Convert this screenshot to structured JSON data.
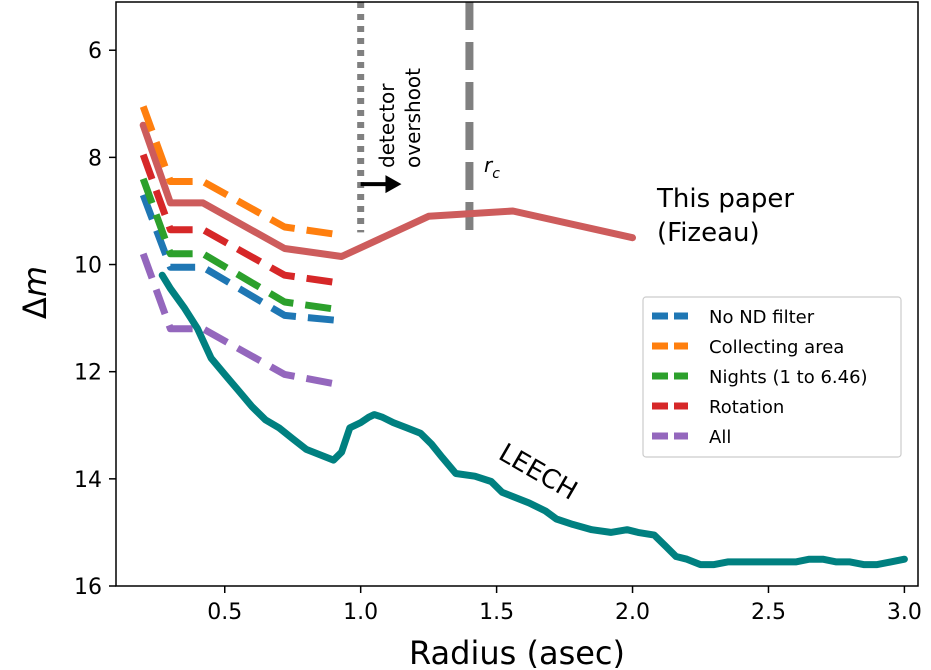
{
  "chart_data": {
    "type": "line",
    "title": "",
    "xlabel": "Radius (asec)",
    "ylabel_symbol": "Δ",
    "ylabel_var": "m",
    "xlim": [
      0.1,
      3.05
    ],
    "ylim": [
      16.0,
      5.1
    ],
    "y_inverted": true,
    "xticks": [
      0.5,
      1.0,
      1.5,
      2.0,
      2.5,
      3.0
    ],
    "xtick_labels": [
      "0.5",
      "1.0",
      "1.5",
      "2.0",
      "2.5",
      "3.0"
    ],
    "yticks": [
      6,
      8,
      10,
      12,
      14,
      16
    ],
    "ytick_labels": [
      "6",
      "8",
      "10",
      "12",
      "14",
      "16"
    ],
    "grid": false,
    "legend_position": "center-right",
    "series": [
      {
        "name": "This paper (Fizeau)",
        "color": "#cd5c5c",
        "style": "solid",
        "x": [
          0.2,
          0.3,
          0.42,
          0.72,
          0.93,
          1.25,
          1.56,
          2.0
        ],
        "y": [
          7.4,
          8.85,
          8.85,
          9.7,
          9.85,
          9.1,
          9.0,
          9.5
        ]
      },
      {
        "name": "No ND filter",
        "color": "#1f77b4",
        "style": "dashed",
        "in_legend": true,
        "x": [
          0.2,
          0.3,
          0.42,
          0.72,
          0.93
        ],
        "y": [
          8.7,
          10.05,
          10.05,
          10.95,
          11.05
        ]
      },
      {
        "name": "Collecting area",
        "color": "#ff7f0e",
        "style": "dashed",
        "in_legend": true,
        "x": [
          0.2,
          0.3,
          0.42,
          0.72,
          0.93
        ],
        "y": [
          7.05,
          8.45,
          8.45,
          9.3,
          9.45
        ]
      },
      {
        "name": "Nights (1 to 6.46)",
        "color": "#2ca02c",
        "style": "dashed",
        "in_legend": true,
        "x": [
          0.2,
          0.3,
          0.42,
          0.72,
          0.93
        ],
        "y": [
          8.4,
          9.8,
          9.8,
          10.7,
          10.85
        ]
      },
      {
        "name": "Rotation",
        "color": "#d62728",
        "style": "dashed",
        "in_legend": true,
        "x": [
          0.2,
          0.3,
          0.42,
          0.72,
          0.93
        ],
        "y": [
          7.95,
          9.35,
          9.35,
          10.2,
          10.35
        ]
      },
      {
        "name": "All",
        "color": "#9467bd",
        "style": "dashed",
        "in_legend": true,
        "x": [
          0.2,
          0.3,
          0.42,
          0.72,
          0.93
        ],
        "y": [
          9.8,
          11.2,
          11.2,
          12.05,
          12.25
        ]
      },
      {
        "name": "LEECH",
        "color": "#008080",
        "style": "solid",
        "x": [
          0.27,
          0.3,
          0.35,
          0.4,
          0.45,
          0.5,
          0.55,
          0.6,
          0.65,
          0.7,
          0.75,
          0.8,
          0.85,
          0.9,
          0.93,
          0.96,
          1.0,
          1.03,
          1.05,
          1.08,
          1.12,
          1.17,
          1.22,
          1.26,
          1.3,
          1.35,
          1.42,
          1.48,
          1.52,
          1.57,
          1.62,
          1.68,
          1.72,
          1.78,
          1.85,
          1.92,
          1.98,
          2.02,
          2.08,
          2.12,
          2.16,
          2.2,
          2.25,
          2.3,
          2.35,
          2.4,
          2.45,
          2.5,
          2.55,
          2.6,
          2.65,
          2.7,
          2.75,
          2.8,
          2.85,
          2.9,
          2.95,
          3.0
        ],
        "y": [
          10.2,
          10.45,
          10.8,
          11.2,
          11.75,
          12.05,
          12.35,
          12.65,
          12.9,
          13.05,
          13.25,
          13.45,
          13.55,
          13.65,
          13.5,
          13.05,
          12.95,
          12.85,
          12.8,
          12.85,
          12.95,
          13.05,
          13.15,
          13.35,
          13.6,
          13.9,
          13.95,
          14.05,
          14.25,
          14.35,
          14.45,
          14.6,
          14.75,
          14.85,
          14.95,
          15.0,
          14.95,
          15.0,
          15.05,
          15.25,
          15.45,
          15.5,
          15.6,
          15.6,
          15.55,
          15.55,
          15.55,
          15.55,
          15.55,
          15.55,
          15.5,
          15.5,
          15.55,
          15.55,
          15.6,
          15.6,
          15.55,
          15.5
        ]
      }
    ],
    "vlines": [
      {
        "name": "detector-overshoot",
        "x": 1.0,
        "y_range": [
          5.1,
          9.4
        ],
        "style": "dotted",
        "color": "#808080"
      },
      {
        "name": "rc",
        "x": 1.4,
        "y_range": [
          5.1,
          9.45
        ],
        "style": "dashed",
        "color": "#808080"
      }
    ],
    "annotations": {
      "detector": "detector",
      "overshoot": "overshoot",
      "rc_base": "r",
      "rc_sub": "c",
      "fizeau_line1": "This paper",
      "fizeau_line2": "(Fizeau)",
      "leech": "LEECH"
    },
    "arrow": {
      "x_start": 1.0,
      "x_end": 1.15,
      "y": 8.5
    }
  }
}
